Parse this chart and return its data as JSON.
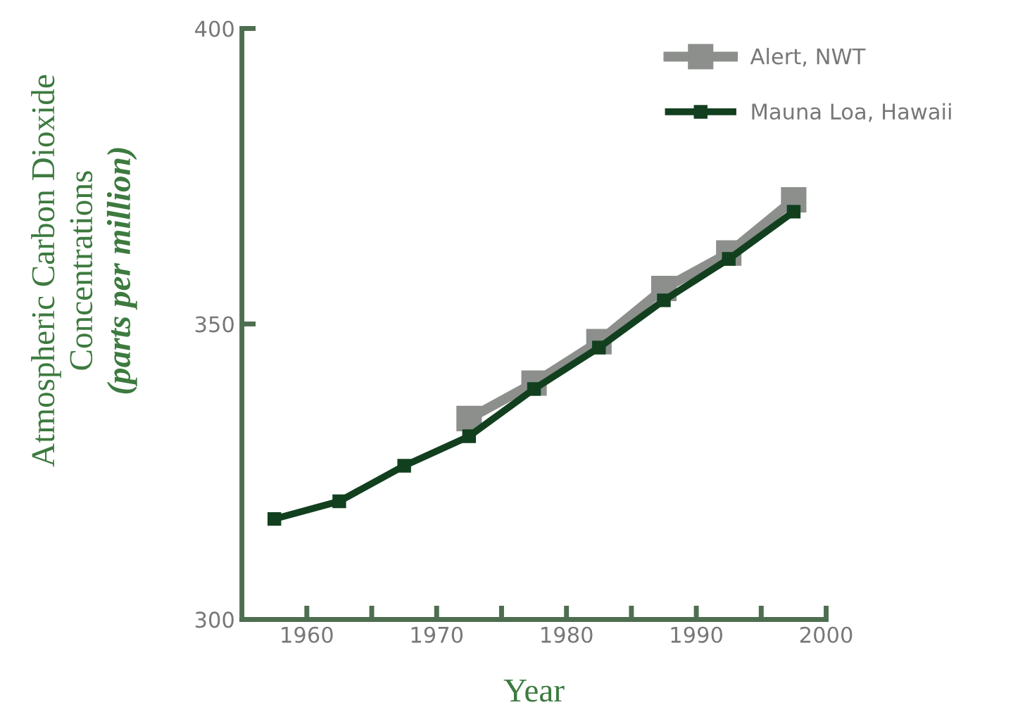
{
  "chart_data": {
    "type": "line",
    "xlabel": "Year",
    "ylabel": "Atmospheric Carbon Dioxide\nConcentrations\n(parts per million)",
    "series": [
      {
        "name": "Alert, NWT",
        "color": "#8c8f8c",
        "x": [
          1972.5,
          1977.5,
          1982.5,
          1987.5,
          1992.5,
          1997.5
        ],
        "values": [
          334,
          340,
          347,
          356,
          362,
          371
        ]
      },
      {
        "name": "Mauna Loa, Hawaii",
        "color": "#12401f",
        "x": [
          1957.5,
          1962.5,
          1967.5,
          1972.5,
          1977.5,
          1982.5,
          1987.5,
          1992.5,
          1997.5
        ],
        "values": [
          317,
          320,
          326,
          331,
          339,
          346,
          354,
          361,
          369
        ]
      }
    ],
    "xlim": [
      1955,
      2000
    ],
    "xticks": [
      1960,
      {
        "value": 1965,
        "label": null
      },
      1970,
      {
        "value": 1975,
        "label": null
      },
      1980,
      {
        "value": 1985,
        "label": null
      },
      1990,
      {
        "value": 1995,
        "label": null
      },
      2000
    ],
    "ylim": [
      300,
      400
    ],
    "yticks": [
      300,
      350,
      400
    ],
    "grid": false,
    "legend": "top right",
    "marker": "square",
    "line_style": "solid"
  }
}
